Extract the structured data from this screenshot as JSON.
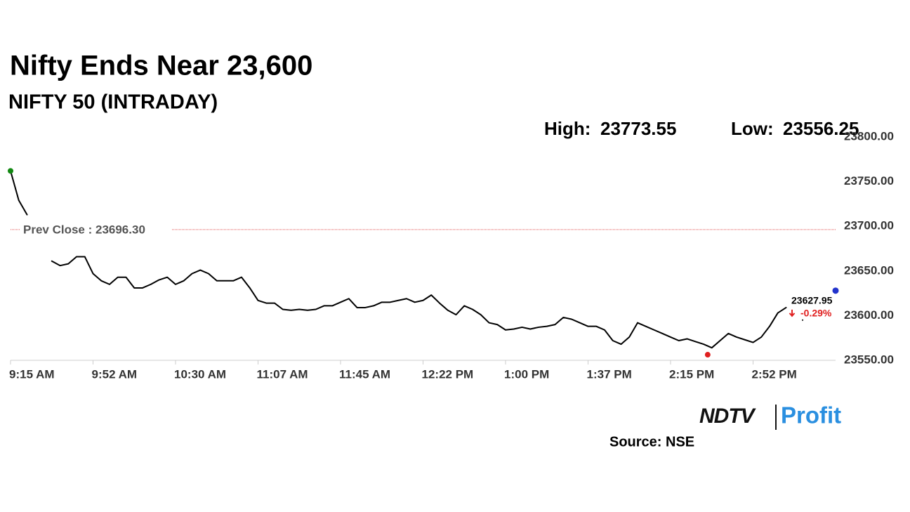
{
  "chart_data": {
    "type": "line",
    "title": "Nifty Ends Near 23,600",
    "subtitle": "NIFTY 50 (INTRADAY)",
    "high_label": "High:",
    "high": 23773.55,
    "low_label": "Low:",
    "low": 23556.25,
    "prev_close": {
      "value": 23696.3,
      "label": "Prev Close : 23696.30"
    },
    "last_value": 23627.95,
    "change": {
      "value": -0.29,
      "label": "-0.29%"
    },
    "source": "Source: NSE",
    "logo": [
      "NDTV",
      "Profit"
    ],
    "categories": [
      "9:15 AM",
      null,
      null,
      null,
      null,
      null,
      null,
      null,
      null,
      null,
      "9:52 AM",
      null,
      null,
      null,
      null,
      null,
      null,
      null,
      null,
      null,
      "10:30 AM",
      null,
      null,
      null,
      null,
      null,
      null,
      null,
      null,
      null,
      "11:07 AM",
      null,
      null,
      null,
      null,
      null,
      null,
      null,
      null,
      null,
      "11:45 AM",
      null,
      null,
      null,
      null,
      null,
      null,
      null,
      null,
      null,
      "12:22 PM",
      null,
      null,
      null,
      null,
      null,
      null,
      null,
      null,
      null,
      "1:00 PM",
      null,
      null,
      null,
      null,
      null,
      null,
      null,
      null,
      null,
      "1:37 PM",
      null,
      null,
      null,
      null,
      null,
      null,
      null,
      null,
      null,
      "2:15 PM",
      null,
      null,
      null,
      null,
      null,
      null,
      null,
      null,
      null,
      "2:52 PM",
      null,
      null,
      null,
      null,
      null,
      null,
      null,
      null,
      null,
      null
    ],
    "series": [
      {
        "name": "NIFTY 50",
        "color": "#000000",
        "values": [
          23762,
          23729,
          23713,
          null,
          null,
          23661,
          23656,
          23658,
          23666,
          23666,
          23647,
          23639,
          23635,
          23643,
          23643,
          23631,
          23631,
          23635,
          23640,
          23643,
          23635,
          23639,
          23647,
          23651,
          23647,
          23639,
          23639,
          23639,
          23643,
          23631,
          23617,
          23614,
          23614,
          23607,
          23606,
          23607,
          23606,
          23607,
          23611,
          23611,
          23615,
          23619,
          23609,
          23609,
          23611,
          23615,
          23615,
          23617,
          23619,
          23615,
          23617,
          23623,
          23614,
          23606,
          23601,
          23611,
          23607,
          23601,
          23592,
          23590,
          23584,
          23585,
          23587,
          23585,
          23587,
          23588,
          23590,
          23598,
          23596,
          23592,
          23588,
          23588,
          23584,
          23572,
          23568,
          23576,
          23592,
          23588,
          23584,
          23580,
          23576,
          23572,
          23574,
          23571,
          23568,
          23564,
          23572,
          23580,
          23576,
          23573,
          23570,
          23576,
          23588,
          23603,
          23609,
          null,
          23595,
          null,
          null,
          null,
          23627.95
        ]
      }
    ],
    "ylim": [
      23550,
      23800
    ],
    "yticks": [
      {
        "value": 23550,
        "label": "23550.00"
      },
      {
        "value": 23600,
        "label": "23600.00"
      },
      {
        "value": 23650,
        "label": "23650.00"
      },
      {
        "value": 23700,
        "label": "23700.00"
      },
      {
        "value": 23750,
        "label": "23750.00"
      },
      {
        "value": 23800,
        "label": "23800.00"
      }
    ],
    "grid": false
  }
}
